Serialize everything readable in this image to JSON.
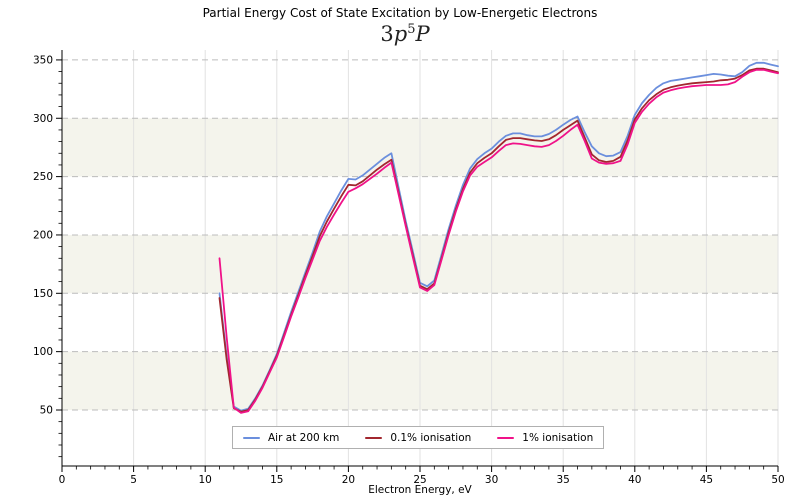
{
  "chart_data": {
    "type": "line",
    "title": "Partial Energy Cost of State Excitation by Low-Energetic Electrons",
    "subtitle": {
      "coeff": "3",
      "orbital": "p",
      "superscript": "5",
      "term": "P"
    },
    "xlabel": "Electron Energy, eV",
    "ylabel": "",
    "x_axis": {
      "min": 0,
      "max": 50,
      "major_ticks": [
        0,
        5,
        10,
        15,
        20,
        25,
        30,
        35,
        40,
        45,
        50
      ],
      "minor_step": 1
    },
    "y_axis": {
      "min": 2,
      "max": 358.5,
      "major_ticks": [
        50,
        100,
        150,
        200,
        250,
        300,
        350
      ],
      "minor_step": 10
    },
    "grid": {
      "horizontal": "dashed",
      "vertical": "solid",
      "h_color": "#bcbcbc",
      "v_color": "#e2e2e2"
    },
    "shaded_bands": {
      "color": "#f4f4ec",
      "ranges": [
        [
          50,
          100
        ],
        [
          150,
          200
        ],
        [
          250,
          300
        ]
      ]
    },
    "legend": {
      "position": "lower center"
    },
    "x_start": 11,
    "x_step": 0.5,
    "series": [
      {
        "name": "Air at 200 km",
        "color": "#6b8fdd",
        "values": [
          150,
          96,
          53,
          49.5,
          51,
          60,
          71,
          84,
          98,
          116,
          134,
          151,
          168,
          185,
          203,
          216,
          227,
          238,
          248,
          247.5,
          251,
          256,
          261,
          266,
          270,
          241,
          212,
          186,
          159,
          156,
          161,
          183,
          205,
          225,
          243,
          257,
          265,
          270,
          274,
          280,
          285,
          287,
          287,
          285.5,
          284.5,
          284.5,
          286.5,
          290,
          294.5,
          298.5,
          301.5,
          288,
          276,
          270,
          267.5,
          268,
          271,
          285,
          303,
          313,
          320,
          326,
          330,
          332,
          333,
          334,
          335,
          336,
          337,
          338,
          337.5,
          336.5,
          336,
          339.5,
          345,
          347.5,
          347.5,
          346,
          344.5
        ]
      },
      {
        "name": "0.1% ionisation",
        "color": "#a2272f",
        "values": [
          146,
          93,
          51.5,
          48.5,
          50,
          59,
          70,
          83,
          96.5,
          114,
          131.5,
          148.5,
          165.5,
          182,
          199,
          211.5,
          222.5,
          233,
          243,
          242.5,
          246,
          251,
          256,
          260.5,
          264.5,
          237,
          209,
          183,
          156.5,
          153.5,
          158.5,
          180,
          202,
          222,
          239.5,
          253.5,
          261.5,
          266,
          270,
          276,
          281.5,
          283,
          283,
          282,
          281,
          280.5,
          282,
          285.5,
          290,
          294,
          298,
          283.5,
          269,
          264,
          262.5,
          263.5,
          267,
          281,
          299,
          308.5,
          315.5,
          320.5,
          324.5,
          326.5,
          328,
          329,
          330,
          330.5,
          331,
          331.5,
          332.5,
          333,
          334,
          337,
          341,
          342.5,
          342.5,
          341,
          339.5
        ]
      },
      {
        "name": "1% ionisation",
        "color": "#f01289",
        "values": [
          180,
          112,
          52,
          47.5,
          49,
          58,
          69,
          82,
          95,
          112.5,
          130,
          146.5,
          163,
          179,
          195,
          207,
          217.5,
          227.5,
          237,
          240,
          243.5,
          248,
          252.5,
          257.5,
          262,
          235,
          207.5,
          181,
          155,
          152,
          157,
          178.5,
          200,
          220,
          237.5,
          251,
          258.5,
          262.5,
          266.5,
          272,
          277,
          278.5,
          278,
          277,
          276,
          275.5,
          277,
          280.5,
          285,
          290,
          294.5,
          280.5,
          265.5,
          262,
          261,
          261.5,
          263.5,
          277.5,
          296,
          305.5,
          312.5,
          318,
          322,
          324,
          325.5,
          326.5,
          327.5,
          328,
          328.5,
          328.5,
          328.5,
          329,
          331,
          335.5,
          339.5,
          341.5,
          341.5,
          340,
          338.5
        ]
      }
    ]
  }
}
